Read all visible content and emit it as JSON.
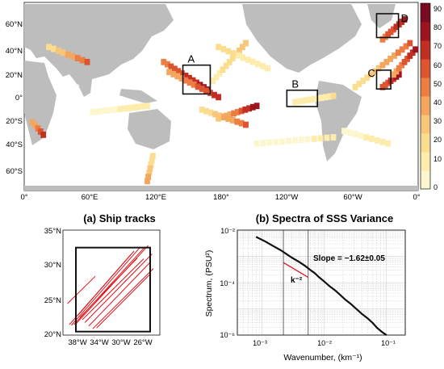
{
  "chart_data": [
    {
      "type": "heatmap",
      "title": "",
      "projection": "global map, 0° to 360° longitude, 75°S to 75°N",
      "xlim": [
        0,
        360
      ],
      "ylim": [
        -75,
        75
      ],
      "x_tick_labels": [
        "0°",
        "60°E",
        "120°E",
        "180°",
        "120°W",
        "60°W",
        "0°"
      ],
      "y_tick_labels": [
        "60°N",
        "40°N",
        "20°N",
        "0°",
        "20°S",
        "40°S",
        "60°S"
      ],
      "colorbar": {
        "ticks": [
          "90",
          "80",
          "70",
          "60",
          "50",
          "40",
          "30",
          "20",
          "10",
          "0"
        ],
        "range": [
          0,
          90
        ],
        "colors": [
          "#fcf6cf",
          "#fdecab",
          "#fbdd8f",
          "#f8c678",
          "#f3a65d",
          "#ec7d43",
          "#dd5430",
          "#c12e22",
          "#9b1420",
          "#7a0b20"
        ]
      },
      "regions": [
        {
          "label": "A",
          "lon": [
            145,
            170
          ],
          "lat": [
            2,
            25
          ]
        },
        {
          "label": "B",
          "lon": [
            240,
            268
          ],
          "lat": [
            -8,
            5
          ]
        },
        {
          "label": "C",
          "lon": [
            322,
            335
          ],
          "lat": [
            6,
            21
          ]
        },
        {
          "label": "D",
          "lon": [
            322,
            342
          ],
          "lat": [
            47,
            66
          ]
        }
      ],
      "land_color": "#bdbdbd",
      "grid": false
    },
    {
      "type": "line",
      "title": "(a) Ship tracks",
      "x_tick_labels": [
        "38°W",
        "34°W",
        "30°W",
        "26°W"
      ],
      "y_tick_labels": [
        "35°N",
        "30°N",
        "25°N",
        "20°N"
      ],
      "xlim": [
        -40,
        -25
      ],
      "ylim": [
        20,
        35
      ],
      "box": {
        "lon": [
          -38,
          -26.5
        ],
        "lat": [
          20.5,
          32.5
        ]
      },
      "line_color": "#e0141b",
      "tracks": [
        {
          "lon": [
            -39.0,
            -29.0
          ],
          "lat": [
            21.5,
            32.0
          ]
        },
        {
          "lon": [
            -38.7,
            -28.0
          ],
          "lat": [
            21.4,
            32.6
          ]
        },
        {
          "lon": [
            -38.3,
            -27.3
          ],
          "lat": [
            21.5,
            32.6
          ]
        },
        {
          "lon": [
            -38.0,
            -26.8
          ],
          "lat": [
            21.6,
            32.8
          ]
        },
        {
          "lon": [
            -37.7,
            -29.5
          ],
          "lat": [
            22.8,
            31.5
          ]
        },
        {
          "lon": [
            -37.4,
            -28.5
          ],
          "lat": [
            22.5,
            31.0
          ]
        },
        {
          "lon": [
            -37.0,
            -27.5
          ],
          "lat": [
            22.2,
            30.9
          ]
        },
        {
          "lon": [
            -36.6,
            -26.2
          ],
          "lat": [
            21.8,
            31.6
          ]
        },
        {
          "lon": [
            -36.0,
            -26.5
          ],
          "lat": [
            21.3,
            30.4
          ]
        },
        {
          "lon": [
            -35.4,
            -26.0
          ],
          "lat": [
            20.9,
            29.5
          ]
        },
        {
          "lon": [
            -34.8,
            -26.4
          ],
          "lat": [
            21.0,
            28.8
          ]
        },
        {
          "lon": [
            -39.3,
            -35.0
          ],
          "lat": [
            24.5,
            28.4
          ]
        }
      ]
    },
    {
      "type": "line",
      "title": "(b) Spectra of SSS Variance",
      "xlabel": "Wavenumber, (km⁻¹)",
      "ylabel": "Spectrum, (PSU²)",
      "x_scale": "log",
      "y_scale": "log",
      "xlim": [
        0.0004,
        0.2
      ],
      "ylim": [
        1e-06,
        0.01
      ],
      "x_tick_labels": [
        "10⁻³",
        "10⁻²",
        "10⁻¹"
      ],
      "y_tick_labels": [
        "10⁻²",
        "10⁻⁴",
        "10⁻⁶"
      ],
      "grid": true,
      "vertical_lines": [
        0.0022,
        0.0055
      ],
      "annotations": [
        "Slope = −1.62±0.05",
        "k⁻²"
      ],
      "series": [
        {
          "color": "#111111",
          "x": [
            0.0008,
            0.0011,
            0.0015,
            0.002,
            0.0025,
            0.003,
            0.004,
            0.005,
            0.006,
            0.007,
            0.008,
            0.01,
            0.012,
            0.015,
            0.018,
            0.022,
            0.027,
            0.033,
            0.04,
            0.05,
            0.06,
            0.07,
            0.085,
            0.1
          ],
          "y": [
            0.0055,
            0.0038,
            0.0025,
            0.0017,
            0.0012,
            0.0009,
            0.0006,
            0.00042,
            0.0003,
            0.00023,
            0.00017,
            0.00011,
            7.5e-05,
            5e-05,
            3.4e-05,
            2.2e-05,
            1.5e-05,
            9.8e-06,
            6.5e-06,
            4.3e-06,
            2.9e-06,
            1.9e-06,
            1.3e-06,
            1e-06
          ]
        },
        {
          "color": "#e0141b",
          "x": [
            0.0022,
            0.0055
          ],
          "y": [
            0.00058,
            0.00016
          ]
        }
      ]
    }
  ]
}
